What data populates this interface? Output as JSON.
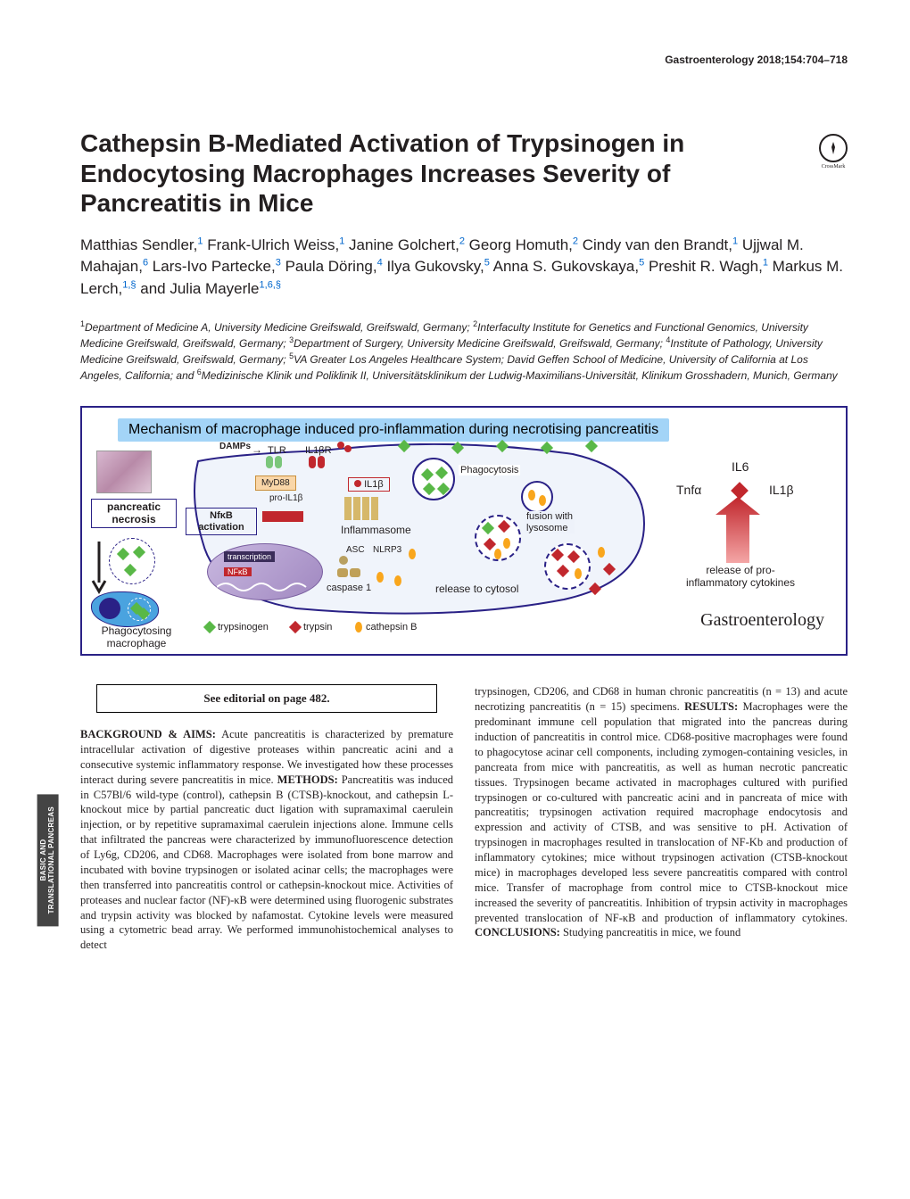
{
  "citation": "Gastroenterology 2018;154:704–718",
  "title": "Cathepsin B-Mediated Activation of Trypsinogen in Endocytosing Macrophages Increases Severity of Pancreatitis in Mice",
  "crossmark_label": "CrossMark",
  "authors_html": "Matthias Sendler,<sup>1</sup> Frank-Ulrich Weiss,<sup>1</sup> Janine Golchert,<sup>2</sup> Georg Homuth,<sup>2</sup> Cindy van den Brandt,<sup>1</sup> Ujjwal M. Mahajan,<sup>6</sup> Lars-Ivo Partecke,<sup>3</sup> Paula Döring,<sup>4</sup> Ilya Gukovsky,<sup>5</sup> Anna S. Gukovskaya,<sup>5</sup> Preshit R. Wagh,<sup>1</sup> Markus M. Lerch,<sup>1,§</sup> and Julia Mayerle<sup>1,6,§</sup>",
  "affiliations": "<sup>1</sup>Department of Medicine A, University Medicine Greifswald, Greifswald, Germany; <sup>2</sup>Interfaculty Institute for Genetics and Functional Genomics, University Medicine Greifswald, Greifswald, Germany; <sup>3</sup>Department of Surgery, University Medicine Greifswald, Greifswald, Germany; <sup>4</sup>Institute of Pathology, University Medicine Greifswald, Greifswald, Germany; <sup>5</sup>VA Greater Los Angeles Healthcare System; David Geffen School of Medicine, University of California at Los Angeles, California; and <sup>6</sup>Medizinische Klinik und Poliklinik II, Universitätsklinikum der Ludwig-Maximilians-Universität, Klinikum Grosshadern, Munich, Germany",
  "figure": {
    "title": "Mechanism of macrophage induced pro-inflammation during necrotising pancreatitis",
    "labels": {
      "pancreatic_necrosis": "pancreatic\nnecrosis",
      "phagocytosing_macrophage": "Phagocytosing\nmacrophage",
      "damps": "DAMPs",
      "tlr": "TLR",
      "il1br": "IL1βR",
      "phagocytosis": "Phagocytosis",
      "il6": "IL6",
      "tnfa": "Tnfα",
      "il1b_right": "IL1β",
      "myd88": "MyD88",
      "il1b": "IL1β",
      "pro_il1b": "pro-IL1β",
      "nfkb_activation": "NfκB\nactivation",
      "fusion_lysosome": "fusion with\nlysosome",
      "inflammasome": "Inflammasome",
      "transcription": "transcription",
      "nfkb": "NFκB",
      "asc": "ASC",
      "nlrp3": "NLRP3",
      "caspase1": "caspase 1",
      "release_cytosol": "release to cytosol",
      "release_pro": "release of pro-\ninflammatory cytokines"
    },
    "legend": {
      "trypsinogen": "trypsinogen",
      "trypsin": "trypsin",
      "cathepsinb": "cathepsin B"
    },
    "journal": "Gastroenterology",
    "colors": {
      "border": "#2a2186",
      "title_bg": "#a3d4f7",
      "green": "#59b847",
      "red": "#c1272d",
      "yellow": "#f9a61c",
      "red_box": "#c1272d",
      "myd88_bg": "#f9d6a8",
      "nucleus": "#a088c0",
      "lightblue_cell": "#a3d4f7",
      "dark_cell": "#3b4a8f",
      "arrow_red": "#c1272d"
    }
  },
  "side_tab": "BASIC AND\nTRANSLATIONAL PANCREAS",
  "editorial": "See editorial on page 482.",
  "abstract": {
    "background_head": "BACKGROUND & AIMS:",
    "background": " Acute pancreatitis is characterized by premature intracellular activation of digestive proteases within pancreatic acini and a consecutive systemic inflammatory response. We investigated how these processes interact during severe pancreatitis in mice. ",
    "methods_head": "METHODS:",
    "methods": " Pancreatitis was induced in C57Bl/6 wild-type (control), cathepsin B (CTSB)-knockout, and cathepsin L-knockout mice by partial pancreatic duct ligation with supramaximal caerulein injection, or by repetitive supramaximal caerulein injections alone. Immune cells that infiltrated the pancreas were characterized by immunofluorescence detection of Ly6g, CD206, and CD68. Macrophages were isolated from bone marrow and incubated with bovine trypsinogen or isolated acinar cells; the macrophages were then transferred into pancreatitis control or cathepsin-knockout mice. Activities of proteases and nuclear factor (NF)-κB were determined using fluorogenic substrates and trypsin activity was blocked by nafamostat. Cytokine levels were measured using a cytometric bead array. We performed immunohistochemical analyses to detect",
    "col2_lead": "trypsinogen, CD206, and CD68 in human chronic pancreatitis (n = 13) and acute necrotizing pancreatitis (n = 15) specimens. ",
    "results_head": "RESULTS:",
    "results": " Macrophages were the predominant immune cell population that migrated into the pancreas during induction of pancreatitis in control mice. CD68-positive macrophages were found to phagocytose acinar cell components, including zymogen-containing vesicles, in pancreata from mice with pancreatitis, as well as human necrotic pancreatic tissues. Trypsinogen became activated in macrophages cultured with purified trypsinogen or co-cultured with pancreatic acini and in pancreata of mice with pancreatitis; trypsinogen activation required macrophage endocytosis and expression and activity of CTSB, and was sensitive to pH. Activation of trypsinogen in macrophages resulted in translocation of NF-Kb and production of inflammatory cytokines; mice without trypsinogen activation (CTSB-knockout mice) in macrophages developed less severe pancreatitis compared with control mice. Transfer of macrophage from control mice to CTSB-knockout mice increased the severity of pancreatitis. Inhibition of trypsin activity in macrophages prevented translocation of NF-κB and production of inflammatory cytokines. ",
    "conclusions_head": "CONCLUSIONS:",
    "conclusions": " Studying pancreatitis in mice, we found"
  }
}
